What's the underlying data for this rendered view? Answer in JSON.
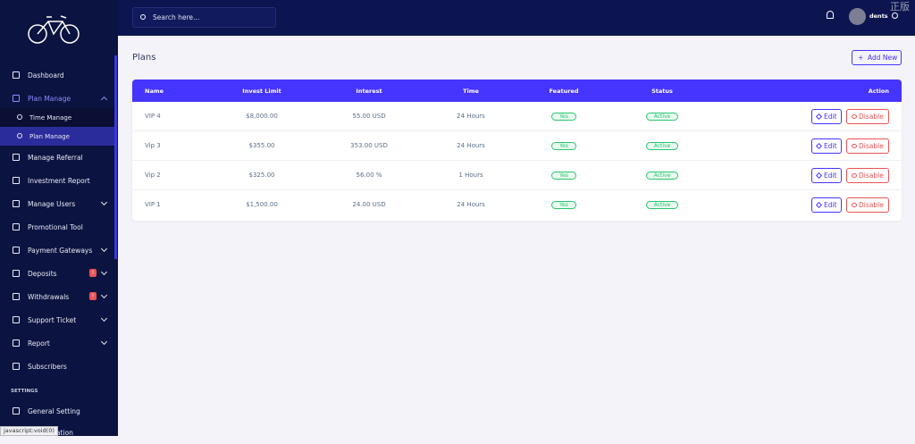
{
  "header": {
    "search_placeholder": "Search here...",
    "username": "dents",
    "watermark": "正版"
  },
  "sidebar": {
    "items": [
      {
        "label": "Dashboard"
      },
      {
        "label": "Plan Manage",
        "active": true,
        "submenu": true
      },
      {
        "label": "Time Manage",
        "sub": true
      },
      {
        "label": "Plan Manage",
        "sub": true,
        "active": true
      },
      {
        "label": "Manage Referral"
      },
      {
        "label": "Investment Report"
      },
      {
        "label": "Manage Users",
        "submenu": true
      },
      {
        "label": "Promotional Tool"
      },
      {
        "label": "Payment Gateways",
        "submenu": true
      },
      {
        "label": "Deposits",
        "submenu": true,
        "badge": "!"
      },
      {
        "label": "Withdrawals",
        "submenu": true,
        "badge": "!"
      },
      {
        "label": "Support Ticket",
        "submenu": true
      },
      {
        "label": "Report",
        "submenu": true
      },
      {
        "label": "Subscribers"
      }
    ],
    "section": "SETTINGS",
    "settings_items": [
      {
        "label": "General Setting"
      },
      {
        "label": "Configuration"
      }
    ]
  },
  "page": {
    "title": "Plans",
    "add_button": "Add New"
  },
  "table": {
    "columns": [
      "Name",
      "Invest Limit",
      "Interest",
      "Time",
      "Featured",
      "Status",
      "Action"
    ],
    "rows": [
      [
        "VIP 4",
        "$8,000.00",
        "55.00 USD",
        "24 Hours",
        "Yes",
        "Active"
      ],
      [
        "Vip 3",
        "$355.00",
        "353.00 USD",
        "24 Hours",
        "Yes",
        "Active"
      ],
      [
        "Vip 2",
        "$325.00",
        "56.00 %",
        "1 Hours",
        "Yes",
        "Active"
      ],
      [
        "VIP 1",
        "$1,500.00",
        "24.00 USD",
        "24 Hours",
        "Yes",
        "Active"
      ]
    ],
    "actions": [
      "Edit",
      "Disable"
    ]
  },
  "status_bar": "javascript:void(0)"
}
